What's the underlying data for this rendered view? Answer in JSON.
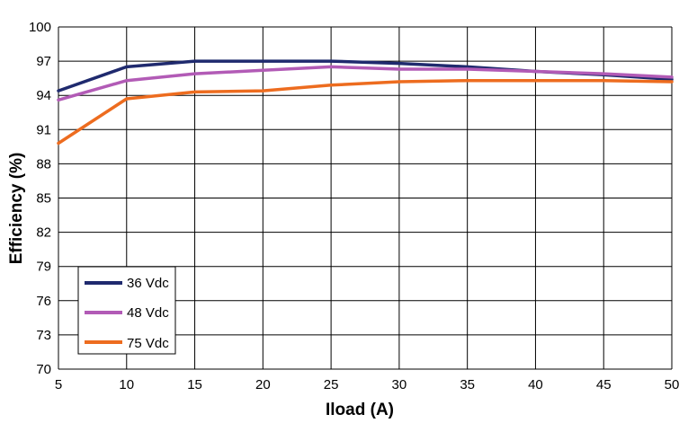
{
  "chart_data": {
    "type": "line",
    "title": "",
    "xlabel": "Iload (A)",
    "ylabel": "Efficiency (%)",
    "x": [
      5,
      10,
      15,
      20,
      25,
      30,
      35,
      40,
      45,
      50
    ],
    "xlim": [
      5,
      50
    ],
    "ylim": [
      70,
      100
    ],
    "xticks": [
      "5",
      "10",
      "15",
      "20",
      "25",
      "30",
      "35",
      "40",
      "45",
      "50"
    ],
    "yticks": [
      "70",
      "73",
      "76",
      "79",
      "82",
      "85",
      "88",
      "91",
      "94",
      "97",
      "100"
    ],
    "grid": true,
    "legend_position": "lower-left",
    "series": [
      {
        "name": "36 Vdc",
        "color": "#1f2a6e",
        "values": [
          94.4,
          96.5,
          97.0,
          97.0,
          97.0,
          96.8,
          96.5,
          96.1,
          95.8,
          95.4
        ]
      },
      {
        "name": "48 Vdc",
        "color": "#b25bb6",
        "values": [
          93.6,
          95.3,
          95.9,
          96.2,
          96.5,
          96.3,
          96.3,
          96.1,
          95.9,
          95.6
        ]
      },
      {
        "name": "75 Vdc",
        "color": "#ed6c1f",
        "values": [
          89.8,
          93.7,
          94.3,
          94.4,
          94.9,
          95.2,
          95.3,
          95.3,
          95.3,
          95.2
        ]
      }
    ]
  }
}
